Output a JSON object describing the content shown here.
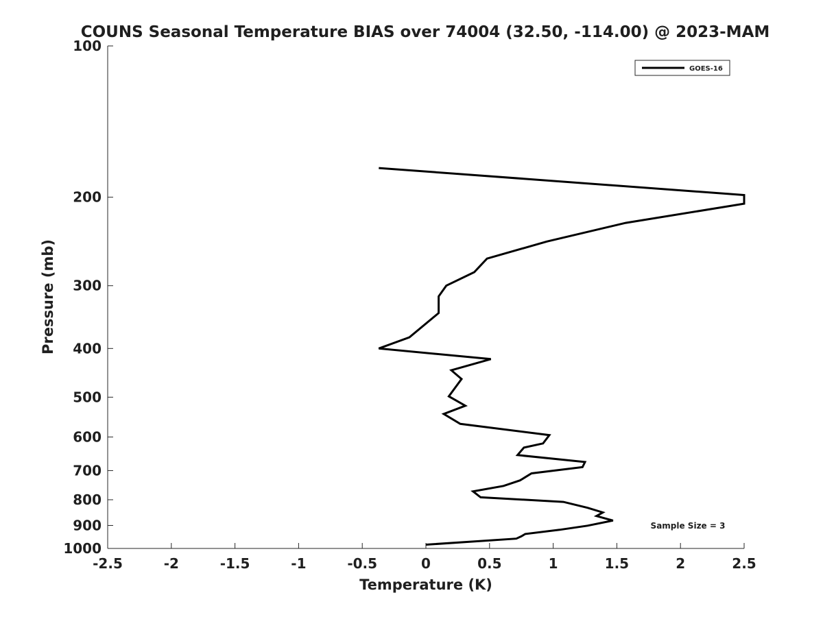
{
  "chart_data": {
    "type": "line",
    "title": "COUNS Seasonal Temperature BIAS over 74004 (32.50, -114.00) @ 2023-MAM",
    "xlabel": "Temperature (K)",
    "ylabel": "Pressure (mb)",
    "xlim": [
      -2.5,
      2.5
    ],
    "ylim": [
      100,
      1000
    ],
    "yscale": "log",
    "y_reversed": true,
    "x_ticks": [
      "-2.5",
      "-2",
      "-1.5",
      "-1",
      "-0.5",
      "0",
      "0.5",
      "1",
      "1.5",
      "2",
      "2.5"
    ],
    "y_ticks": [
      "100",
      "200",
      "300",
      "400",
      "500",
      "600",
      "700",
      "800",
      "900",
      "1000"
    ],
    "legend": {
      "entries": [
        "GOES-16"
      ],
      "location": "top-right"
    },
    "annotation": "Sample Size = 3",
    "series": [
      {
        "name": "GOES-16",
        "color": "#000000",
        "points": [
          {
            "x": -0.37,
            "p": 175
          },
          {
            "x": 2.5,
            "p": 198
          },
          {
            "x": 2.5,
            "p": 206
          },
          {
            "x": 1.57,
            "p": 225
          },
          {
            "x": 0.95,
            "p": 245
          },
          {
            "x": 0.48,
            "p": 265
          },
          {
            "x": 0.38,
            "p": 282
          },
          {
            "x": 0.16,
            "p": 300
          },
          {
            "x": 0.1,
            "p": 315
          },
          {
            "x": 0.1,
            "p": 340
          },
          {
            "x": -0.13,
            "p": 380
          },
          {
            "x": -0.37,
            "p": 400
          },
          {
            "x": 0.51,
            "p": 420
          },
          {
            "x": 0.2,
            "p": 442
          },
          {
            "x": 0.28,
            "p": 460
          },
          {
            "x": 0.18,
            "p": 498
          },
          {
            "x": 0.31,
            "p": 520
          },
          {
            "x": 0.14,
            "p": 540
          },
          {
            "x": 0.27,
            "p": 565
          },
          {
            "x": 0.97,
            "p": 595
          },
          {
            "x": 0.92,
            "p": 618
          },
          {
            "x": 0.77,
            "p": 630
          },
          {
            "x": 0.72,
            "p": 652
          },
          {
            "x": 1.25,
            "p": 673
          },
          {
            "x": 1.23,
            "p": 689
          },
          {
            "x": 0.83,
            "p": 709
          },
          {
            "x": 0.74,
            "p": 732
          },
          {
            "x": 0.61,
            "p": 751
          },
          {
            "x": 0.37,
            "p": 770
          },
          {
            "x": 0.43,
            "p": 791
          },
          {
            "x": 1.08,
            "p": 808
          },
          {
            "x": 1.27,
            "p": 830
          },
          {
            "x": 1.39,
            "p": 848
          },
          {
            "x": 1.34,
            "p": 862
          },
          {
            "x": 1.47,
            "p": 880
          },
          {
            "x": 1.27,
            "p": 901
          },
          {
            "x": 1.05,
            "p": 918
          },
          {
            "x": 0.78,
            "p": 936
          },
          {
            "x": 0.75,
            "p": 946
          },
          {
            "x": 0.71,
            "p": 956
          },
          {
            "x": 0,
            "p": 983
          }
        ]
      }
    ]
  }
}
